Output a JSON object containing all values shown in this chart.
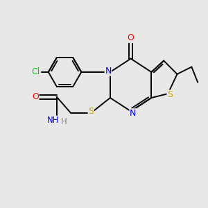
{
  "background_color": "#e8e8e8",
  "bond_color": "#000000",
  "atom_colors": {
    "N": "#0000ff",
    "S": "#ccaa00",
    "O": "#ff0000",
    "Cl": "#00cc00",
    "C": "#000000",
    "H": "#808080"
  },
  "lw": 1.4,
  "xlim": [
    0,
    10
  ],
  "ylim": [
    0,
    10
  ]
}
